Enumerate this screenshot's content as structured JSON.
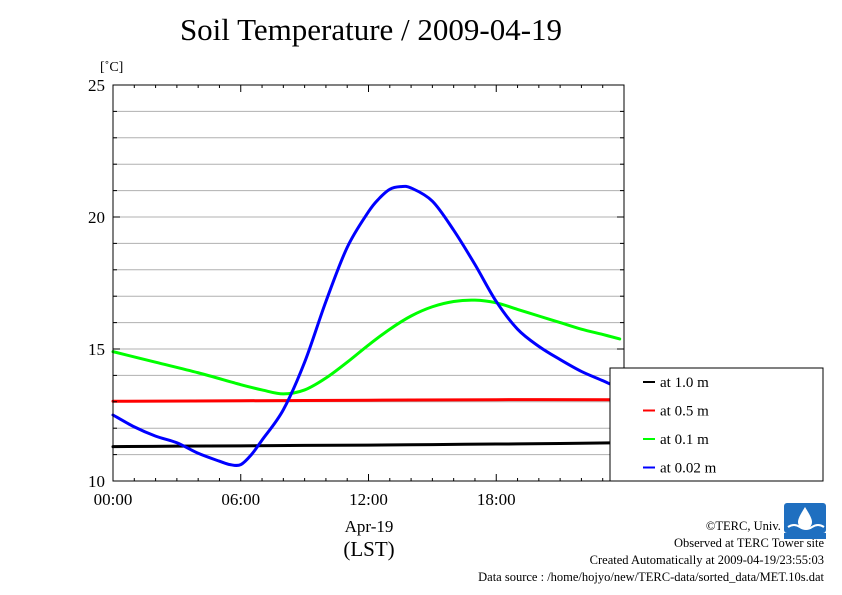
{
  "chart_data": {
    "type": "line",
    "title": "Soil Temperature / 2009-04-19",
    "ylabel": "[˚C]",
    "xlabel_date": "Apr-19",
    "xlabel_unit": "(LST)",
    "ylim": [
      10,
      25
    ],
    "xlim": [
      "00:00",
      "24:00"
    ],
    "yticks": [
      10,
      15,
      20,
      25
    ],
    "xtick_labels": [
      "00:00",
      "06:00",
      "12:00",
      "18:00"
    ],
    "xtick_hours": [
      0,
      6,
      12,
      18
    ],
    "grid": "horizontal",
    "legend_position": "right",
    "x_unit": "hour of day (LST)",
    "series": [
      {
        "name": "at 1.0 m",
        "color": "#000000",
        "x": [
          0,
          3,
          6,
          9,
          12,
          15,
          18,
          21,
          23.8
        ],
        "values": [
          11.3,
          11.32,
          11.33,
          11.35,
          11.36,
          11.38,
          11.4,
          11.42,
          11.45
        ]
      },
      {
        "name": "at 0.5 m",
        "color": "#ff0000",
        "x": [
          0,
          6,
          12,
          18,
          23.8
        ],
        "values": [
          13.02,
          13.04,
          13.06,
          13.08,
          13.08
        ]
      },
      {
        "name": "at 0.1 m",
        "color": "#00ff00",
        "x": [
          0,
          2,
          4,
          6,
          7,
          8,
          9,
          10,
          11,
          12,
          13,
          14,
          15,
          16,
          17,
          18,
          19,
          20,
          21,
          22,
          23,
          23.8
        ],
        "values": [
          14.9,
          14.5,
          14.1,
          13.65,
          13.45,
          13.3,
          13.45,
          13.9,
          14.5,
          15.15,
          15.75,
          16.25,
          16.6,
          16.8,
          16.85,
          16.75,
          16.5,
          16.25,
          16.0,
          15.75,
          15.55,
          15.38
        ]
      },
      {
        "name": "at 0.02 m",
        "color": "#0000ff",
        "x": [
          0,
          1,
          2,
          3,
          4,
          5,
          5.5,
          6,
          6.5,
          7,
          8,
          9,
          10,
          11,
          12,
          12.5,
          13,
          13.5,
          14,
          15,
          16,
          17,
          18,
          19,
          20,
          21,
          22,
          23,
          23.8
        ],
        "values": [
          12.5,
          12.05,
          11.7,
          11.45,
          11.05,
          10.75,
          10.62,
          10.62,
          11.0,
          11.55,
          12.7,
          14.5,
          16.8,
          18.85,
          20.2,
          20.7,
          21.05,
          21.15,
          21.1,
          20.6,
          19.5,
          18.2,
          16.8,
          15.75,
          15.1,
          14.6,
          14.15,
          13.8,
          13.5
        ]
      }
    ]
  },
  "credits": {
    "copyright": "©TERC, Univ. Tsukuba",
    "observed": "Observed at TERC Tower site",
    "created": "Created Automatically at 2009-04-19/23:55:03",
    "source": "Data source : /home/hojyo/new/TERC-data/sorted_data/MET.10s.dat"
  }
}
